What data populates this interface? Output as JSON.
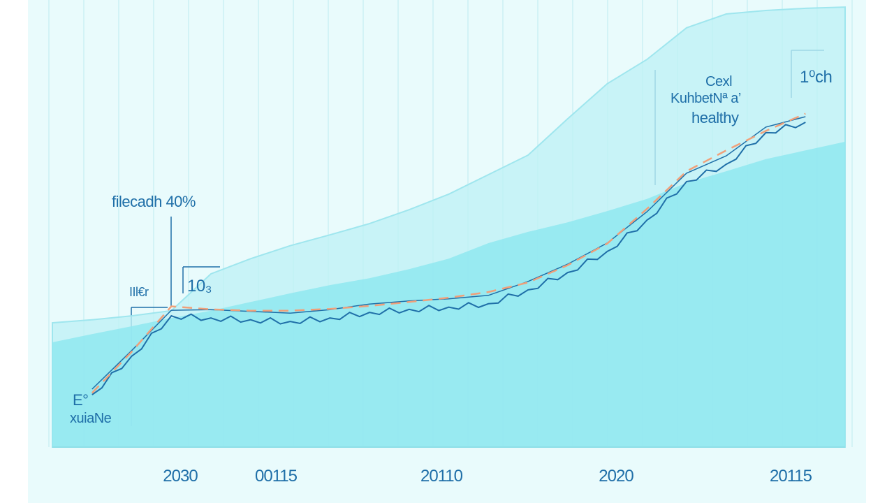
{
  "chart_data": {
    "type": "area",
    "title": "",
    "xlabel": "",
    "ylabel": "",
    "x_tick_labels": [
      "2030",
      "00115",
      "20110",
      "2020",
      "20115"
    ],
    "grid": {
      "vertical": true,
      "horizontal": false
    },
    "ylim": [
      0,
      105
    ],
    "series": [
      {
        "kind": "area-upper",
        "color": "#bff1f5",
        "values": [
          28.7,
          29.4,
          30.3,
          31.5,
          40,
          43.5,
          46.5,
          49,
          51.6,
          54.8,
          58.4,
          62.9,
          67.4,
          75.8,
          83.9,
          89.5,
          96.8,
          100,
          100.8,
          101.3,
          101.6
        ]
      },
      {
        "kind": "area-lower",
        "color": "#8fe8f0",
        "values": [
          24.2,
          26.1,
          27.9,
          29.8,
          31.5,
          33.5,
          35.5,
          37.4,
          39,
          41.1,
          43.5,
          47.1,
          49.7,
          51.9,
          54.5,
          57.3,
          61,
          63.7,
          66.5,
          68.5,
          70.5
        ]
      },
      {
        "kind": "line",
        "color": "#1f6fa8",
        "values": [
          null,
          12.1,
          21,
          30.3,
          29.8,
          29.4,
          29,
          29.8,
          31.1,
          31.8,
          32.3,
          33.1,
          36.3,
          40.3,
          45.2,
          52.4,
          61.3,
          65.3,
          72.6,
          75,
          null
        ]
      },
      {
        "kind": "dashed-trend",
        "color": "#f0a07a",
        "values": [
          null,
          12.5,
          22,
          32.5,
          31.8,
          31.5,
          31.5,
          31.9,
          32.6,
          33.5,
          34.5,
          35.8,
          38,
          42,
          47,
          55,
          63.7,
          68.5,
          73,
          77,
          null
        ]
      }
    ],
    "annotations": [
      "filecadh 40%",
      "10₃",
      "IIl€r",
      "E°",
      "xuiaNe",
      "Cexl",
      "KuhbetNª a’",
      "healthy",
      "1⁰ch"
    ]
  }
}
